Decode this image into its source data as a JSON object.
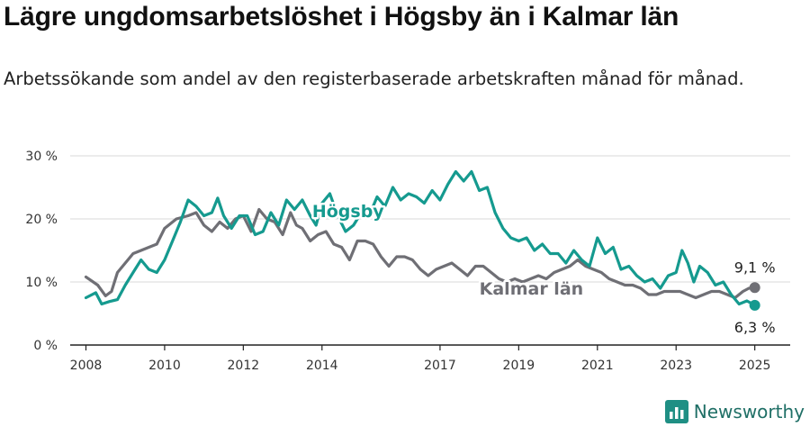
{
  "title": "Lägre ungdomsarbetslöshet i Högsby än i Kalmar län",
  "subtitle": "Arbetssökande som andel av den registerbaserade arbetskraften månad för månad.",
  "brand": "Newsworthy",
  "colors": {
    "hogsby": "#159a8f",
    "kalmar": "#6f6f75",
    "grid": "#d9d9d9",
    "axis": "#222222",
    "label_bg": "#ffffff"
  },
  "chart_data": {
    "type": "line",
    "xlim": [
      2007.6,
      2025.9
    ],
    "ylim": [
      0,
      30
    ],
    "y_ticks": [
      0,
      10,
      20,
      30
    ],
    "y_tick_labels": [
      "0 %",
      "10 %",
      "20 %",
      "30 %"
    ],
    "x_ticks": [
      2008,
      2010,
      2012,
      2014,
      2017,
      2019,
      2021,
      2023,
      2025
    ],
    "x_tick_labels": [
      "2008",
      "2010",
      "2012",
      "2014",
      "2017",
      "2019",
      "2021",
      "2023",
      "2025"
    ],
    "grid": true,
    "series": [
      {
        "name": "Högsby",
        "end_label": "6,3 %",
        "points": [
          [
            2008.0,
            7.5
          ],
          [
            2008.25,
            8.3
          ],
          [
            2008.4,
            6.5
          ],
          [
            2008.6,
            6.9
          ],
          [
            2008.8,
            7.2
          ],
          [
            2009.0,
            9.5
          ],
          [
            2009.2,
            11.5
          ],
          [
            2009.4,
            13.5
          ],
          [
            2009.6,
            12.0
          ],
          [
            2009.8,
            11.5
          ],
          [
            2010.0,
            13.5
          ],
          [
            2010.2,
            16.5
          ],
          [
            2010.4,
            19.5
          ],
          [
            2010.6,
            23.0
          ],
          [
            2010.8,
            22.0
          ],
          [
            2011.0,
            20.5
          ],
          [
            2011.2,
            21.0
          ],
          [
            2011.35,
            23.3
          ],
          [
            2011.5,
            20.5
          ],
          [
            2011.7,
            18.5
          ],
          [
            2011.9,
            20.5
          ],
          [
            2012.1,
            20.5
          ],
          [
            2012.3,
            17.5
          ],
          [
            2012.5,
            18.0
          ],
          [
            2012.7,
            21.0
          ],
          [
            2012.9,
            19.0
          ],
          [
            2013.1,
            23.0
          ],
          [
            2013.3,
            21.5
          ],
          [
            2013.5,
            23.0
          ],
          [
            2013.7,
            20.5
          ],
          [
            2013.85,
            19.0
          ],
          [
            2014.0,
            22.5
          ],
          [
            2014.2,
            24.0
          ],
          [
            2014.4,
            20.5
          ],
          [
            2014.6,
            18.0
          ],
          [
            2014.8,
            19.0
          ],
          [
            2015.0,
            21.0
          ],
          [
            2015.2,
            20.5
          ],
          [
            2015.4,
            23.5
          ],
          [
            2015.6,
            22.0
          ],
          [
            2015.8,
            25.0
          ],
          [
            2016.0,
            23.0
          ],
          [
            2016.2,
            24.0
          ],
          [
            2016.4,
            23.5
          ],
          [
            2016.6,
            22.5
          ],
          [
            2016.8,
            24.5
          ],
          [
            2017.0,
            23.0
          ],
          [
            2017.2,
            25.5
          ],
          [
            2017.4,
            27.5
          ],
          [
            2017.6,
            26.0
          ],
          [
            2017.8,
            27.5
          ],
          [
            2018.0,
            24.5
          ],
          [
            2018.2,
            25.0
          ],
          [
            2018.4,
            21.0
          ],
          [
            2018.6,
            18.5
          ],
          [
            2018.8,
            17.0
          ],
          [
            2019.0,
            16.5
          ],
          [
            2019.2,
            17.0
          ],
          [
            2019.4,
            15.0
          ],
          [
            2019.6,
            16.0
          ],
          [
            2019.8,
            14.5
          ],
          [
            2020.0,
            14.5
          ],
          [
            2020.2,
            13.0
          ],
          [
            2020.4,
            15.0
          ],
          [
            2020.6,
            13.5
          ],
          [
            2020.8,
            12.5
          ],
          [
            2021.0,
            17.0
          ],
          [
            2021.2,
            14.5
          ],
          [
            2021.4,
            15.5
          ],
          [
            2021.6,
            12.0
          ],
          [
            2021.8,
            12.5
          ],
          [
            2022.0,
            11.0
          ],
          [
            2022.2,
            10.0
          ],
          [
            2022.4,
            10.5
          ],
          [
            2022.6,
            9.0
          ],
          [
            2022.8,
            11.0
          ],
          [
            2023.0,
            11.5
          ],
          [
            2023.15,
            15.0
          ],
          [
            2023.3,
            13.0
          ],
          [
            2023.45,
            10.0
          ],
          [
            2023.6,
            12.5
          ],
          [
            2023.8,
            11.5
          ],
          [
            2024.0,
            9.5
          ],
          [
            2024.2,
            10.0
          ],
          [
            2024.4,
            8.0
          ],
          [
            2024.6,
            6.5
          ],
          [
            2024.8,
            7.0
          ],
          [
            2025.0,
            6.3
          ]
        ]
      },
      {
        "name": "Kalmar län",
        "end_label": "9,1 %",
        "points": [
          [
            2008.0,
            10.8
          ],
          [
            2008.3,
            9.5
          ],
          [
            2008.5,
            7.8
          ],
          [
            2008.65,
            8.5
          ],
          [
            2008.8,
            11.5
          ],
          [
            2009.0,
            13.0
          ],
          [
            2009.2,
            14.5
          ],
          [
            2009.4,
            15.0
          ],
          [
            2009.6,
            15.5
          ],
          [
            2009.8,
            16.0
          ],
          [
            2010.0,
            18.5
          ],
          [
            2010.3,
            20.0
          ],
          [
            2010.6,
            20.5
          ],
          [
            2010.8,
            21.0
          ],
          [
            2011.0,
            19.0
          ],
          [
            2011.2,
            18.0
          ],
          [
            2011.4,
            19.5
          ],
          [
            2011.6,
            18.5
          ],
          [
            2011.8,
            20.0
          ],
          [
            2012.0,
            20.5
          ],
          [
            2012.2,
            18.0
          ],
          [
            2012.4,
            21.5
          ],
          [
            2012.6,
            20.0
          ],
          [
            2012.8,
            19.5
          ],
          [
            2013.0,
            17.5
          ],
          [
            2013.2,
            21.0
          ],
          [
            2013.35,
            19.0
          ],
          [
            2013.5,
            18.5
          ],
          [
            2013.7,
            16.5
          ],
          [
            2013.9,
            17.5
          ],
          [
            2014.1,
            18.0
          ],
          [
            2014.3,
            16.0
          ],
          [
            2014.5,
            15.5
          ],
          [
            2014.7,
            13.5
          ],
          [
            2014.9,
            16.5
          ],
          [
            2015.1,
            16.5
          ],
          [
            2015.3,
            16.0
          ],
          [
            2015.5,
            14.0
          ],
          [
            2015.7,
            12.5
          ],
          [
            2015.9,
            14.0
          ],
          [
            2016.1,
            14.0
          ],
          [
            2016.3,
            13.5
          ],
          [
            2016.5,
            12.0
          ],
          [
            2016.7,
            11.0
          ],
          [
            2016.9,
            12.0
          ],
          [
            2017.1,
            12.5
          ],
          [
            2017.3,
            13.0
          ],
          [
            2017.5,
            12.0
          ],
          [
            2017.7,
            11.0
          ],
          [
            2017.9,
            12.5
          ],
          [
            2018.1,
            12.5
          ],
          [
            2018.3,
            11.5
          ],
          [
            2018.5,
            10.5
          ],
          [
            2018.7,
            10.0
          ],
          [
            2018.9,
            10.5
          ],
          [
            2019.1,
            10.0
          ],
          [
            2019.3,
            10.5
          ],
          [
            2019.5,
            11.0
          ],
          [
            2019.7,
            10.5
          ],
          [
            2019.9,
            11.5
          ],
          [
            2020.1,
            12.0
          ],
          [
            2020.3,
            12.5
          ],
          [
            2020.5,
            13.5
          ],
          [
            2020.7,
            12.5
          ],
          [
            2020.9,
            12.0
          ],
          [
            2021.1,
            11.5
          ],
          [
            2021.3,
            10.5
          ],
          [
            2021.5,
            10.0
          ],
          [
            2021.7,
            9.5
          ],
          [
            2021.9,
            9.5
          ],
          [
            2022.1,
            9.0
          ],
          [
            2022.3,
            8.0
          ],
          [
            2022.5,
            8.0
          ],
          [
            2022.7,
            8.5
          ],
          [
            2022.9,
            8.5
          ],
          [
            2023.1,
            8.5
          ],
          [
            2023.3,
            8.0
          ],
          [
            2023.5,
            7.5
          ],
          [
            2023.7,
            8.0
          ],
          [
            2023.9,
            8.5
          ],
          [
            2024.1,
            8.5
          ],
          [
            2024.3,
            8.0
          ],
          [
            2024.5,
            7.5
          ],
          [
            2024.7,
            8.5
          ],
          [
            2024.85,
            9.0
          ],
          [
            2025.0,
            9.1
          ]
        ]
      }
    ]
  }
}
